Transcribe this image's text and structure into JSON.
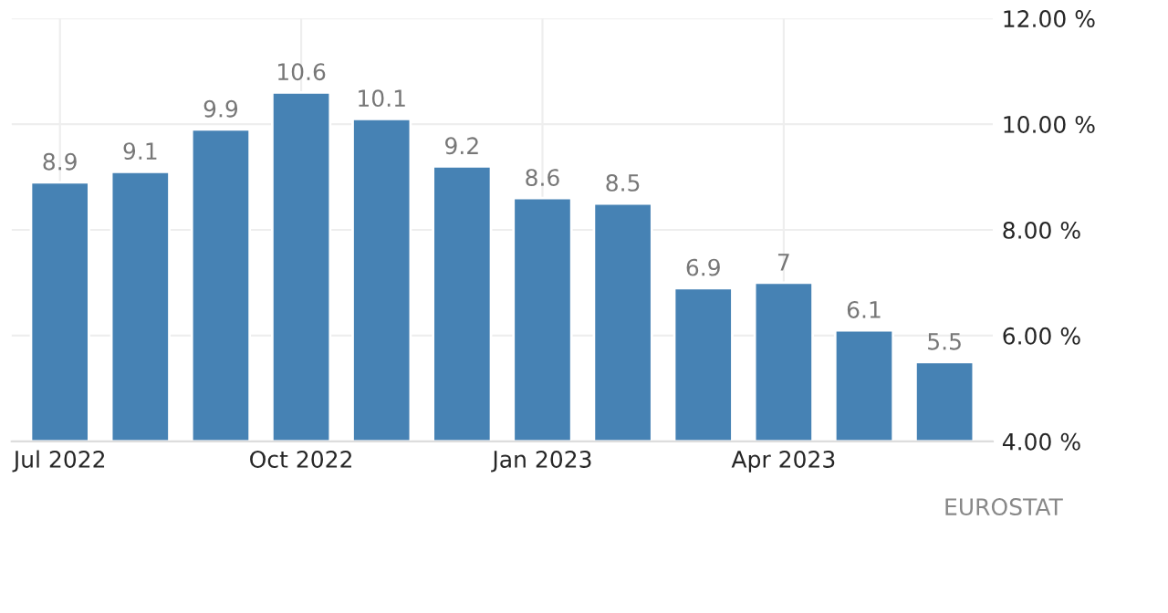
{
  "chart_data": {
    "type": "bar",
    "categories": [
      "Jul 2022",
      null,
      null,
      "Oct 2022",
      null,
      null,
      "Jan 2023",
      null,
      null,
      "Apr 2023",
      null,
      null
    ],
    "values": [
      8.9,
      9.1,
      9.9,
      10.6,
      10.1,
      9.2,
      8.6,
      8.5,
      6.9,
      7,
      6.1,
      5.5
    ],
    "color": "#4682b4",
    "ylim": [
      4,
      12
    ],
    "yticks": [
      {
        "value": 4,
        "label": "4.00 %"
      },
      {
        "value": 6,
        "label": "6.00 %"
      },
      {
        "value": 8,
        "label": "8.00 %"
      },
      {
        "value": 10,
        "label": "10.00 %"
      },
      {
        "value": 12,
        "label": "12.00 %"
      }
    ],
    "grid": true,
    "data_labels": true,
    "annotations": [
      "EUROSTAT"
    ]
  }
}
